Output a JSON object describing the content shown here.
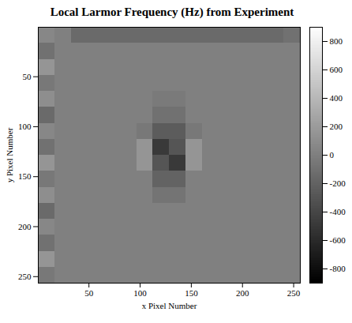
{
  "chart_data": {
    "type": "heatmap",
    "title": "Local Larmor Frequency (Hz) from Experiment",
    "xlabel": "x Pixel Number",
    "ylabel": "y Pixel Number",
    "xlim": [
      0.5,
      256.5
    ],
    "ylim": [
      0.5,
      256.5
    ],
    "xticks": [
      50,
      100,
      150,
      200,
      250
    ],
    "yticks": [
      50,
      100,
      150,
      200,
      250
    ],
    "x_edges": [
      0.5,
      16.5,
      32.5,
      48.5,
      64.5,
      80.5,
      96.5,
      112.5,
      128.5,
      144.5,
      160.5,
      176.5,
      192.5,
      208.5,
      224.5,
      240.5,
      256.5
    ],
    "y_edges": [
      0.5,
      16.5,
      32.5,
      48.5,
      64.5,
      80.5,
      96.5,
      112.5,
      128.5,
      144.5,
      160.5,
      176.5,
      192.5,
      208.5,
      224.5,
      240.5,
      256.5
    ],
    "cells": [
      [
        50,
        0,
        -150,
        -150,
        -150,
        -150,
        -150,
        -150,
        -150,
        -150,
        -150,
        -150,
        -150,
        -150,
        -150,
        -100
      ],
      [
        -100,
        0,
        0,
        0,
        0,
        0,
        0,
        0,
        0,
        0,
        0,
        0,
        0,
        0,
        0,
        0
      ],
      [
        150,
        0,
        0,
        0,
        0,
        0,
        0,
        0,
        0,
        0,
        0,
        0,
        0,
        0,
        0,
        0
      ],
      [
        -50,
        0,
        0,
        0,
        0,
        0,
        0,
        0,
        0,
        0,
        0,
        0,
        0,
        0,
        0,
        0
      ],
      [
        100,
        0,
        0,
        0,
        0,
        0,
        0,
        -40,
        -40,
        0,
        0,
        0,
        0,
        0,
        0,
        0
      ],
      [
        -150,
        0,
        0,
        0,
        0,
        0,
        0,
        -100,
        -100,
        0,
        0,
        0,
        0,
        0,
        0,
        0
      ],
      [
        50,
        0,
        0,
        0,
        0,
        0,
        -50,
        -250,
        -250,
        -50,
        0,
        0,
        0,
        0,
        0,
        0
      ],
      [
        -100,
        0,
        0,
        0,
        0,
        0,
        150,
        -500,
        -300,
        150,
        0,
        0,
        0,
        0,
        0,
        0
      ],
      [
        150,
        0,
        0,
        0,
        0,
        0,
        150,
        -300,
        -500,
        150,
        0,
        0,
        0,
        0,
        0,
        0
      ],
      [
        -50,
        0,
        0,
        0,
        0,
        0,
        0,
        -200,
        -200,
        0,
        0,
        0,
        0,
        0,
        0,
        0
      ],
      [
        100,
        0,
        0,
        0,
        0,
        0,
        0,
        -80,
        -80,
        0,
        0,
        0,
        0,
        0,
        0,
        0
      ],
      [
        -150,
        0,
        0,
        0,
        0,
        0,
        0,
        0,
        0,
        0,
        0,
        0,
        0,
        0,
        0,
        0
      ],
      [
        50,
        0,
        0,
        0,
        0,
        0,
        0,
        0,
        0,
        0,
        0,
        0,
        0,
        0,
        0,
        0
      ],
      [
        -100,
        0,
        0,
        0,
        0,
        0,
        0,
        0,
        0,
        0,
        0,
        0,
        0,
        0,
        0,
        0
      ],
      [
        150,
        0,
        0,
        0,
        0,
        0,
        0,
        0,
        0,
        0,
        0,
        0,
        0,
        0,
        0,
        0
      ],
      [
        -50,
        0,
        0,
        0,
        0,
        0,
        0,
        0,
        0,
        0,
        0,
        0,
        0,
        0,
        0,
        0
      ]
    ],
    "colorbar": {
      "lim": [
        -900,
        900
      ],
      "ticks": [
        -800,
        -600,
        -400,
        -200,
        0,
        200,
        400,
        600,
        800
      ]
    }
  }
}
